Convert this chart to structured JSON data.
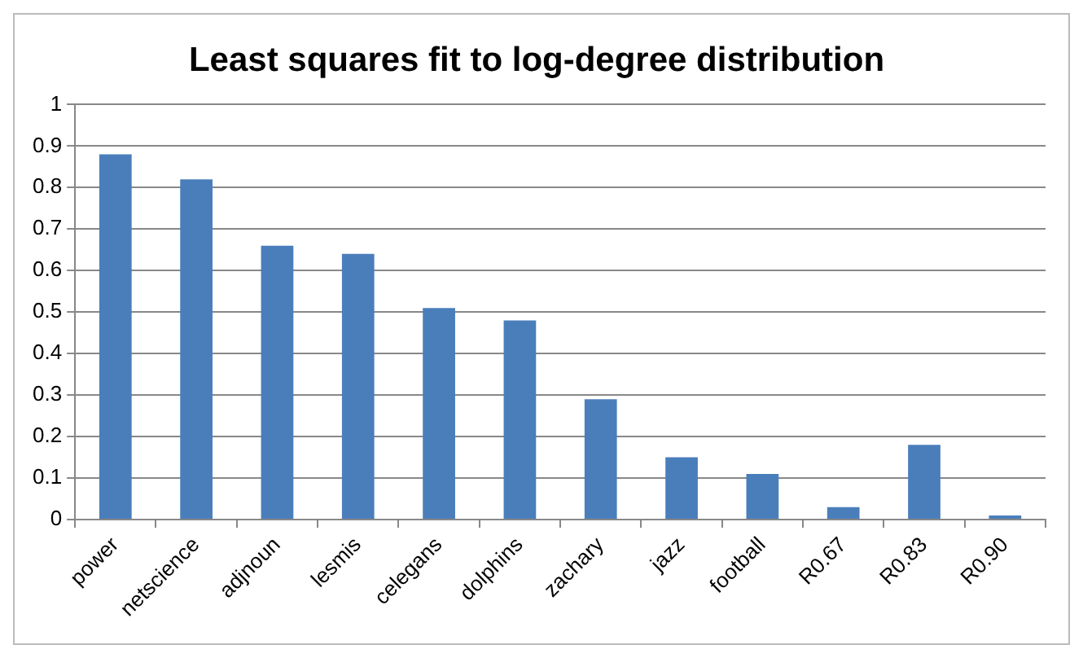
{
  "chart_data": {
    "type": "bar",
    "title": "Least squares fit to log-degree distribution",
    "categories": [
      "power",
      "netscience",
      "adjnoun",
      "lesmis",
      "celegans",
      "dolphins",
      "zachary",
      "jazz",
      "football",
      "R0.67",
      "R0.83",
      "R0.90"
    ],
    "values": [
      0.88,
      0.82,
      0.66,
      0.64,
      0.51,
      0.48,
      0.29,
      0.15,
      0.11,
      0.03,
      0.18,
      0.01
    ],
    "color": "#4a7ebb",
    "ylim": [
      0,
      1
    ],
    "yticks": [
      0,
      0.1,
      0.2,
      0.3,
      0.4,
      0.5,
      0.6,
      0.7,
      0.8,
      0.9,
      1
    ],
    "grid": "y"
  }
}
